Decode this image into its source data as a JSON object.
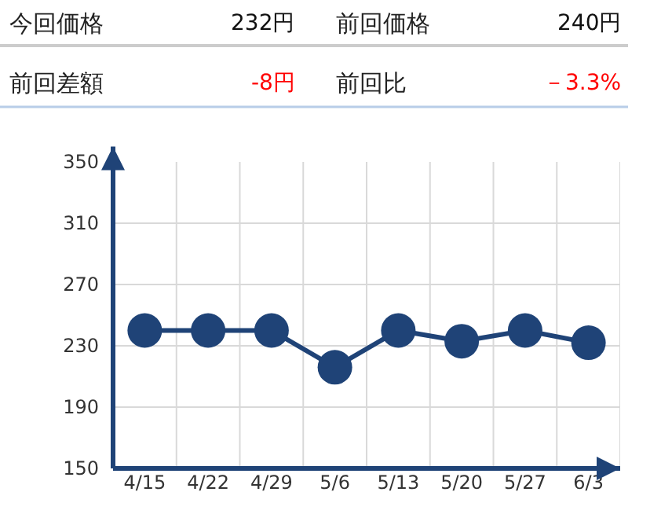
{
  "chart_data": {
    "type": "line",
    "annotations": [
      "今回価格",
      "232円",
      "前回価格",
      "240円",
      "前回差額",
      "-8円",
      "前回比",
      "－3.3%"
    ],
    "categories": [
      "4/15",
      "4/22",
      "4/29",
      "5/6",
      "5/13",
      "5/20",
      "5/27",
      "6/3"
    ],
    "series": [
      {
        "color": "#1f4377",
        "values": [
          240,
          240,
          240,
          216,
          240,
          233,
          240,
          232
        ]
      }
    ],
    "ylim": [
      150,
      350
    ],
    "yticks": [
      150,
      190,
      230,
      270,
      310,
      350
    ],
    "grid": true,
    "marker": "circle",
    "line_style": "solid"
  }
}
